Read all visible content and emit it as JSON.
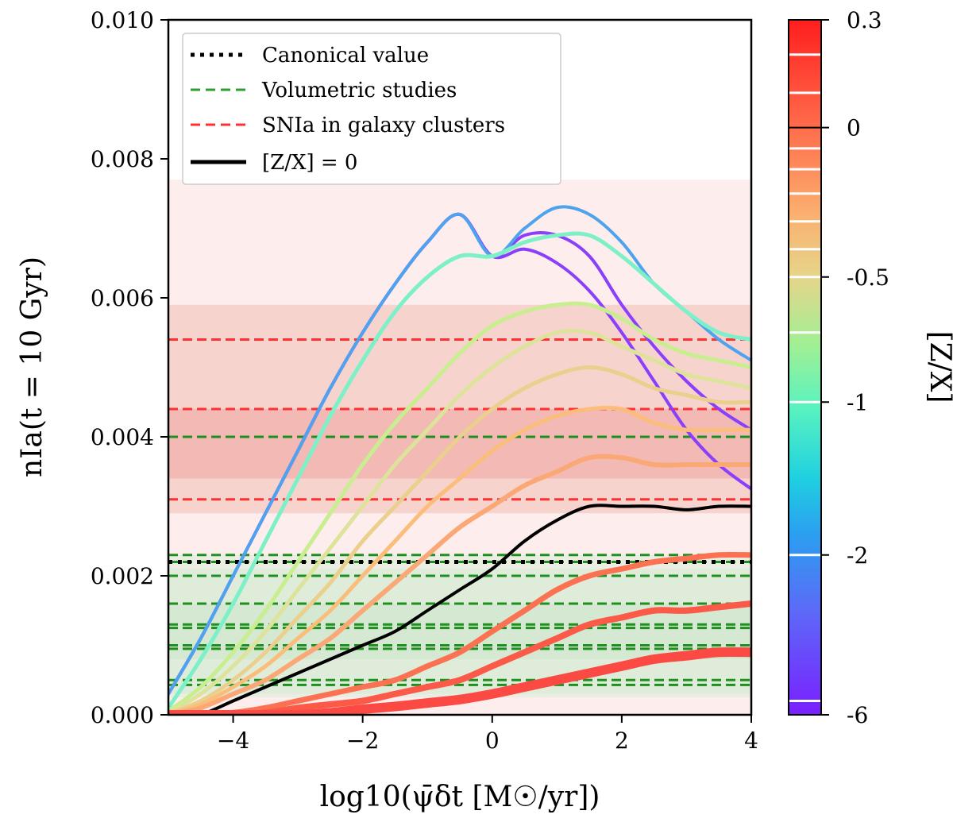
{
  "chart_data": {
    "type": "line",
    "xlabel": "log10(ψ̄δt [M☉/yr])",
    "ylabel": "nIa(t = 10 Gyr)",
    "xlim": [
      -5,
      4
    ],
    "ylim": [
      0,
      0.01
    ],
    "x_ticks": [
      -4,
      -2,
      0,
      2,
      4
    ],
    "x_tick_labels": [
      "−4",
      "−2",
      "0",
      "2",
      "4"
    ],
    "y_ticks": [
      0,
      0.002,
      0.004,
      0.006,
      0.008,
      0.01
    ],
    "y_tick_labels": [
      "0.000",
      "0.002",
      "0.004",
      "0.006",
      "0.008",
      "0.010"
    ],
    "legend": {
      "placement": "top-left",
      "entries": [
        {
          "label": "Canonical value",
          "style": "dotted",
          "color": "#000000"
        },
        {
          "label": "Volumetric studies",
          "style": "dashed",
          "color": "#2ca02c"
        },
        {
          "label": "SNIa in galaxy clusters",
          "style": "dashed",
          "color": "#ff3030"
        },
        {
          "label": "[Z/X] = 0",
          "style": "solid",
          "color": "#000000"
        }
      ]
    },
    "bands": [
      {
        "name": "cluster-wide",
        "y": [
          0.0,
          0.0077
        ],
        "color": "#fde7e7",
        "opacity": 0.75
      },
      {
        "name": "cluster-mid",
        "y": [
          0.0029,
          0.0059
        ],
        "color": "#efb4a9",
        "opacity": 0.45
      },
      {
        "name": "cluster-core",
        "y": [
          0.0034,
          0.0044
        ],
        "color": "#ec8a84",
        "opacity": 0.35
      },
      {
        "name": "volumetric-wide",
        "y": [
          0.00025,
          0.0023
        ],
        "color": "#d8efd8",
        "opacity": 0.55
      },
      {
        "name": "volumetric-mid",
        "y": [
          0.0003,
          0.0021
        ],
        "color": "#cce8cc",
        "opacity": 0.35
      },
      {
        "name": "volumetric-core",
        "y": [
          0.0008,
          0.0016
        ],
        "color": "#c2e2c2",
        "opacity": 0.35
      }
    ],
    "canonical_value": 0.0022,
    "volumetric_values": [
      0.0023,
      0.0022,
      0.002,
      0.0016,
      0.0013,
      0.00125,
      0.001,
      0.00095,
      0.0005,
      0.00043,
      0.004
    ],
    "cluster_values": [
      0.0054,
      0.0044,
      0.0031
    ],
    "x": [
      -5,
      -4.5,
      -4,
      -3.5,
      -3,
      -2.5,
      -2,
      -1.5,
      -1,
      -0.5,
      0,
      0.5,
      1,
      1.5,
      2,
      2.5,
      3,
      3.5,
      4
    ],
    "series": [
      {
        "name": "[Z/X]=-6",
        "color": "#8a3ffb",
        "width": 4,
        "values": [
          0.0003,
          0.0011,
          0.002,
          0.0029,
          0.0038,
          0.0047,
          0.0055,
          0.0062,
          0.0068,
          0.0072,
          0.0066,
          0.0067,
          0.0065,
          0.0061,
          0.0055,
          0.0048,
          0.0041,
          0.0036,
          0.00325
        ]
      },
      {
        "name": "[Z/X]=-5",
        "color": "#8a3ffb",
        "width": 4,
        "values": [
          0.0003,
          0.0011,
          0.002,
          0.0029,
          0.0038,
          0.0047,
          0.0055,
          0.0062,
          0.0068,
          0.0072,
          0.0066,
          0.0069,
          0.0069,
          0.0066,
          0.0059,
          0.0053,
          0.0048,
          0.0044,
          0.0041
        ]
      },
      {
        "name": "[Z/X]=-2",
        "color": "#4ea3ef",
        "width": 4,
        "values": [
          0.0003,
          0.0011,
          0.002,
          0.0029,
          0.0038,
          0.0047,
          0.0055,
          0.0062,
          0.0068,
          0.0072,
          0.0066,
          0.007,
          0.0073,
          0.0072,
          0.0068,
          0.0062,
          0.0058,
          0.0054,
          0.0051
        ]
      },
      {
        "name": "[Z/X]=-1",
        "color": "#7ef0c8",
        "width": 5,
        "values": [
          0.0001,
          0.0008,
          0.0016,
          0.0025,
          0.0034,
          0.0043,
          0.0051,
          0.0058,
          0.0063,
          0.0066,
          0.0066,
          0.0068,
          0.0069,
          0.0069,
          0.0066,
          0.0062,
          0.0058,
          0.0055,
          0.0054
        ]
      },
      {
        "name": "[Z/X]=-0.7",
        "color": "#c8ee90",
        "width": 5,
        "values": [
          5e-05,
          0.0004,
          0.0009,
          0.0015,
          0.0022,
          0.0029,
          0.0036,
          0.0042,
          0.0047,
          0.0052,
          0.0056,
          0.0058,
          0.0059,
          0.0059,
          0.0057,
          0.0054,
          0.0052,
          0.0051,
          0.005
        ]
      },
      {
        "name": "[Z/X]=-0.5",
        "color": "#dde39a",
        "width": 5,
        "values": [
          3e-05,
          0.0003,
          0.0007,
          0.0012,
          0.0018,
          0.0024,
          0.003,
          0.0036,
          0.0041,
          0.0046,
          0.005,
          0.0053,
          0.0055,
          0.0055,
          0.0053,
          0.0051,
          0.0049,
          0.0048,
          0.0047
        ]
      },
      {
        "name": "[Z/X]=-0.4",
        "color": "#ead08c",
        "width": 5,
        "values": [
          2e-05,
          0.0002,
          0.0005,
          0.0009,
          0.0014,
          0.0019,
          0.0025,
          0.003,
          0.0035,
          0.004,
          0.0044,
          0.0047,
          0.0049,
          0.005,
          0.0049,
          0.0047,
          0.0046,
          0.0045,
          0.0045
        ]
      },
      {
        "name": "[Z/X]=-0.3",
        "color": "#fbbd7a",
        "width": 5,
        "values": [
          1e-05,
          0.00015,
          0.0004,
          0.0007,
          0.0011,
          0.0015,
          0.002,
          0.0025,
          0.003,
          0.0034,
          0.0038,
          0.0041,
          0.0043,
          0.0044,
          0.0044,
          0.0042,
          0.0041,
          0.0041,
          0.0041
        ]
      },
      {
        "name": "[Z/X]=-0.2",
        "color": "#fba877",
        "width": 6,
        "values": [
          0.0,
          0.0001,
          0.0003,
          0.0005,
          0.0008,
          0.0011,
          0.0015,
          0.0019,
          0.0023,
          0.0027,
          0.003,
          0.0033,
          0.0035,
          0.0037,
          0.0037,
          0.0036,
          0.0036,
          0.0036,
          0.0036
        ]
      },
      {
        "name": "[Z/X]=0",
        "color": "#000000",
        "width": 4,
        "values": [
          -0.0001,
          0.0,
          0.0002,
          0.0004,
          0.0006,
          0.0008,
          0.001,
          0.0012,
          0.0015,
          0.0018,
          0.0021,
          0.0025,
          0.0028,
          0.003,
          0.003,
          0.003,
          0.00295,
          0.003,
          0.003
        ]
      },
      {
        "name": "[Z/X]=0.1",
        "color": "#fb7252",
        "width": 7,
        "values": [
          0.0,
          0.0,
          3e-05,
          0.0001,
          0.0002,
          0.0003,
          0.0004,
          0.0005,
          0.0007,
          0.0009,
          0.0012,
          0.0015,
          0.0018,
          0.002,
          0.0021,
          0.0022,
          0.00225,
          0.0023,
          0.0023
        ]
      },
      {
        "name": "[Z/X]=0.2",
        "color": "#fb5a49",
        "width": 8,
        "values": [
          0.0,
          0.0,
          0.0,
          3e-05,
          0.0001,
          0.00015,
          0.0002,
          0.0003,
          0.0004,
          0.0005,
          0.0007,
          0.0009,
          0.0011,
          0.0013,
          0.0014,
          0.0015,
          0.0015,
          0.00155,
          0.0016
        ]
      },
      {
        "name": "[Z/X]=0.3",
        "color": "#fb4a44",
        "width": 12,
        "values": [
          0.0,
          0.0,
          0.0,
          0.0,
          0.0,
          3e-05,
          8e-05,
          0.00012,
          0.00017,
          0.00022,
          0.0003,
          0.0004,
          0.0005,
          0.0006,
          0.0007,
          0.0008,
          0.00085,
          0.0009,
          0.0009
        ]
      }
    ],
    "colorbar": {
      "label": "[Z/X]",
      "tick_labels": [
        "0.3",
        "0",
        "-0.5",
        "-1",
        "-2",
        "-6"
      ],
      "tick_fractions": [
        0.0,
        0.155,
        0.37,
        0.55,
        0.77,
        1.0
      ],
      "white_tick_fractions": [
        0.05,
        0.105,
        0.185,
        0.215,
        0.25,
        0.29,
        0.33,
        0.37,
        0.45,
        0.55,
        0.77,
        0.98
      ]
    }
  }
}
